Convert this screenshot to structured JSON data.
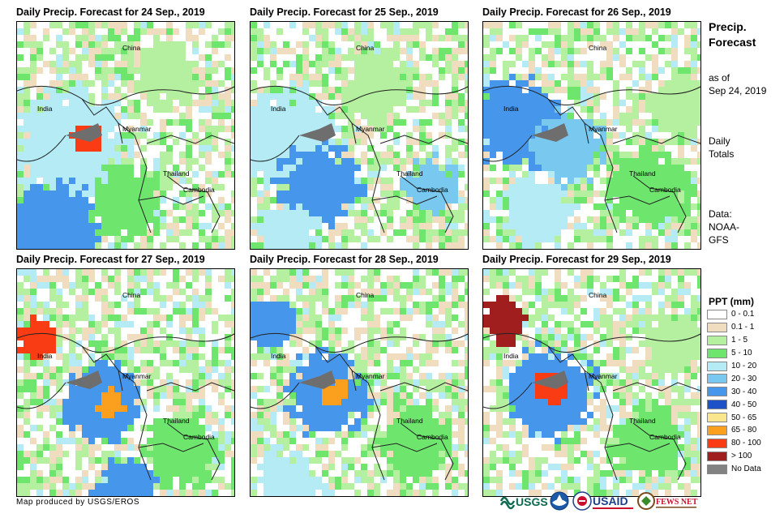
{
  "panels": [
    {
      "title": "Daily Precip. Forecast for 24 Sep., 2019"
    },
    {
      "title": "Daily Precip. Forecast for 25 Sep., 2019"
    },
    {
      "title": "Daily Precip. Forecast for 26 Sep., 2019"
    },
    {
      "title": "Daily Precip. Forecast for 27 Sep., 2019"
    },
    {
      "title": "Daily Precip. Forecast for 28 Sep., 2019"
    },
    {
      "title": "Daily Precip. Forecast for 29 Sep., 2019"
    }
  ],
  "map_labels": {
    "china": "China",
    "india": "India",
    "myanmar": "Myanmar",
    "thailand": "Thailand",
    "cambodia": "Cambodia"
  },
  "side": {
    "title_line1": "Precip.",
    "title_line2": "Forecast",
    "asof_line1": "as of",
    "asof_line2": "Sep 24, 2019",
    "totals_line1": "Daily",
    "totals_line2": "Totals",
    "data_line1": "Data:",
    "data_line2": "NOAA-",
    "data_line3": "GFS"
  },
  "legend": {
    "title": "PPT (mm)",
    "items": [
      {
        "label": "0 - 0.1",
        "color": "#ffffff"
      },
      {
        "label": "0.1 - 1",
        "color": "#f0dcbe"
      },
      {
        "label": "1 - 5",
        "color": "#b4f0a0"
      },
      {
        "label": "5 - 10",
        "color": "#6ee66e"
      },
      {
        "label": "10 - 20",
        "color": "#b4ebf5"
      },
      {
        "label": "20 - 30",
        "color": "#78c8f0"
      },
      {
        "label": "30 - 40",
        "color": "#4696eb"
      },
      {
        "label": "40 - 50",
        "color": "#1e50c8"
      },
      {
        "label": "50 - 65",
        "color": "#fae68c"
      },
      {
        "label": "65 - 80",
        "color": "#faa01e"
      },
      {
        "label": "80 - 100",
        "color": "#fa3c14"
      },
      {
        "label": "> 100",
        "color": "#a01e1e"
      },
      {
        "label": "No Data",
        "color": "#828282"
      }
    ]
  },
  "credit": "Map produced by USGS/EROS",
  "logos": {
    "usgs": "USGS",
    "usaid": "USAID",
    "fewsnet": "FEWS NET"
  }
}
